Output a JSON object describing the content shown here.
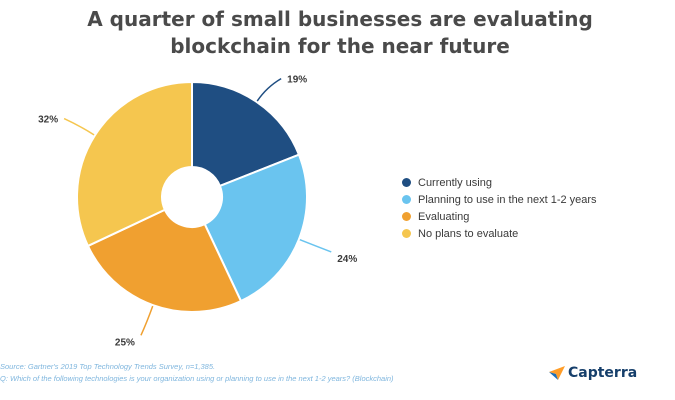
{
  "title": {
    "line1": "A quarter of small businesses are evaluating",
    "line2": "blockchain for the near future"
  },
  "chart_data": {
    "type": "pie",
    "donut": true,
    "categories": [
      "Currently using",
      "Planning to use in the next 1-2 years",
      "Evaluating",
      "No plans to evaluate"
    ],
    "values": [
      19,
      24,
      25,
      32
    ],
    "labels": [
      "19%",
      "24%",
      "25%",
      "32%"
    ],
    "colors": [
      "#1f4e82",
      "#6ac4ef",
      "#f0a030",
      "#f5c64f"
    ],
    "legend_position": "right"
  },
  "legend": {
    "items": [
      {
        "label": "Currently using",
        "color": "#1f4e82"
      },
      {
        "label": "Planning to use in the next 1-2 years",
        "color": "#6ac4ef"
      },
      {
        "label": "Evaluating",
        "color": "#f0a030"
      },
      {
        "label": "No plans to evaluate",
        "color": "#f5c64f"
      }
    ]
  },
  "footer": {
    "source": "Source: Gartner's 2019 Top Technology Trends Survey, n=1,385.",
    "question": "Q: Which of the following technologies is your organization using or planning to use in the next 1-2 years? (Blockchain)"
  },
  "brand": {
    "name": "Capterra",
    "logo_icon": "capterra-arrow-icon"
  }
}
